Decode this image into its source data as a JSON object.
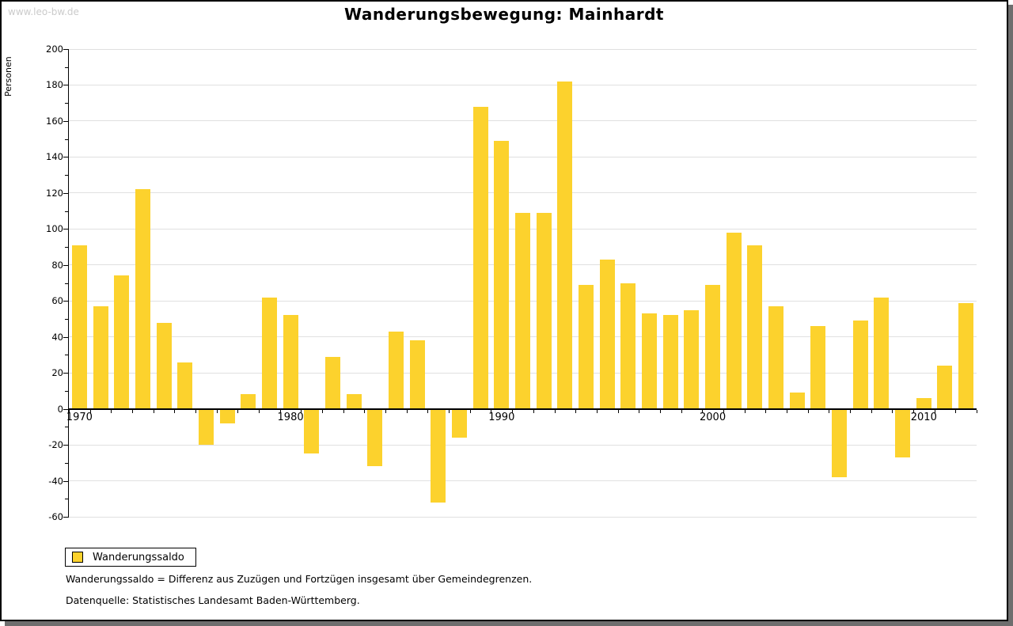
{
  "watermark": "www.leo-bw.de",
  "header": {
    "title": "Wanderungsbewegung: Mainhardt"
  },
  "colors": {
    "bar": "#FCD22D",
    "grid": "#E0E0E0",
    "axis": "#000000",
    "shadow": "#6E6E6E",
    "watermark": "#CBCBCB"
  },
  "legend": {
    "label": "Wanderungssaldo"
  },
  "footnotes": {
    "definition": "Wanderungssaldo = Differenz aus Zuzügen und Fortzügen insgesamt über Gemeindegrenzen.",
    "source": "Datenquelle: Statistisches Landesamt Baden-Württemberg."
  },
  "chart_data": {
    "type": "bar",
    "title": "Wanderungsbewegung: Mainhardt",
    "xlabel": "",
    "ylabel": "Personen",
    "ylim": [
      -60,
      200
    ],
    "ytick_step": 20,
    "yminor_step": 10,
    "grid": "horizontal",
    "legend_position": "bottom-left",
    "series_name": "Wanderungssaldo",
    "categories": [
      1970,
      1971,
      1972,
      1973,
      1974,
      1975,
      1976,
      1977,
      1978,
      1979,
      1980,
      1981,
      1982,
      1983,
      1984,
      1985,
      1986,
      1987,
      1988,
      1989,
      1990,
      1991,
      1992,
      1993,
      1994,
      1995,
      1996,
      1997,
      1998,
      1999,
      2000,
      2001,
      2002,
      2003,
      2004,
      2005,
      2006,
      2007,
      2008,
      2009,
      2010,
      2011,
      2012
    ],
    "values": [
      91,
      57,
      74,
      122,
      48,
      26,
      -20,
      -8,
      8,
      62,
      52,
      -25,
      29,
      8,
      -32,
      43,
      38,
      -52,
      -16,
      168,
      149,
      109,
      109,
      182,
      69,
      83,
      70,
      53,
      52,
      55,
      69,
      98,
      91,
      57,
      9,
      46,
      -38,
      49,
      62,
      -27,
      6,
      24,
      59
    ],
    "xtick_labels": [
      "1970",
      "1980",
      "1990",
      "2000",
      "2010"
    ]
  }
}
